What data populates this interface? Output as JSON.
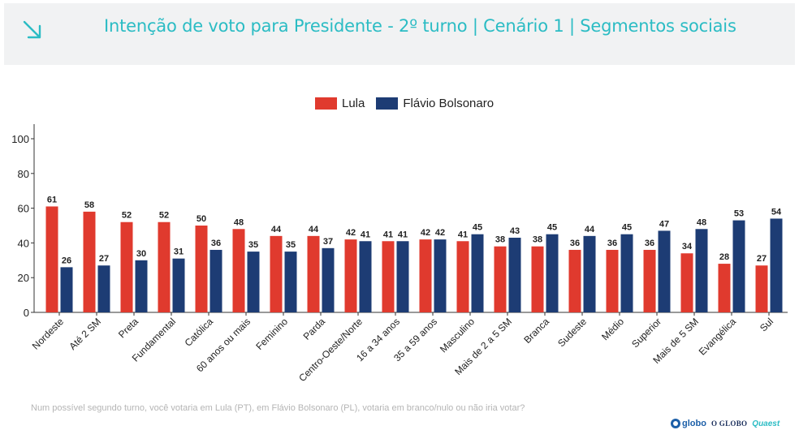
{
  "header": {
    "title": "Intenção de voto para Presidente - 2º turno | Cenário 1 | Segmentos sociais",
    "icon": "arrow-down-right-icon"
  },
  "colors": {
    "header_bg": "#f1f2f3",
    "title": "#2bbcc4",
    "lula": "#e03a2e",
    "flavio": "#1d3c74"
  },
  "chart_data": {
    "type": "bar",
    "title": "",
    "xlabel": "",
    "ylabel": "",
    "ylim": [
      0,
      100
    ],
    "yticks": [
      0,
      20,
      40,
      60,
      80,
      100
    ],
    "grid": false,
    "legend_position": "top-center",
    "categories": [
      "Nordeste",
      "Até 2 SM",
      "Preta",
      "Fundamental",
      "Católica",
      "60 anos ou mais",
      "Feminino",
      "Parda",
      "Centro-Oeste/Norte",
      "16 a 34 anos",
      "35 a 59 anos",
      "Masculino",
      "Mais de 2 a 5 SM",
      "Branca",
      "Sudeste",
      "Médio",
      "Superior",
      "Mais de 5 SM",
      "Evangélica",
      "Sul"
    ],
    "series": [
      {
        "name": "Lula",
        "color": "#e03a2e",
        "values": [
          61,
          58,
          52,
          52,
          50,
          48,
          44,
          44,
          42,
          41,
          42,
          41,
          38,
          38,
          36,
          36,
          36,
          34,
          28,
          27
        ]
      },
      {
        "name": "Flávio Bolsonaro",
        "color": "#1d3c74",
        "values": [
          26,
          27,
          30,
          31,
          36,
          35,
          35,
          37,
          41,
          41,
          42,
          45,
          43,
          45,
          44,
          45,
          47,
          48,
          53,
          54
        ]
      }
    ]
  },
  "note": "Num possível segundo turno, você votaria em Lula (PT), em Flávio Bolsonaro (PL), votaria em branco/nulo ou não iria votar?",
  "brands": {
    "globo": "globo",
    "oglobo": "O GLOBO",
    "quaest": "Quaest"
  }
}
